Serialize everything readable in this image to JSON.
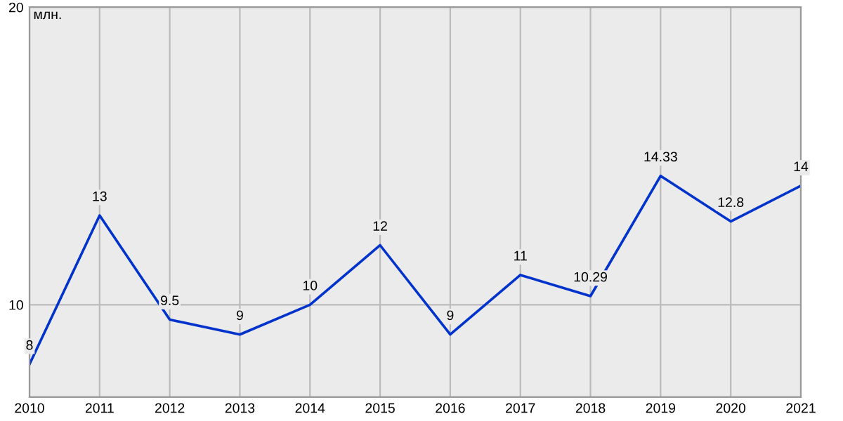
{
  "chart_data": {
    "type": "line",
    "ylabel": "млн.",
    "x": [
      2010,
      2011,
      2012,
      2013,
      2014,
      2015,
      2016,
      2017,
      2018,
      2019,
      2020,
      2021
    ],
    "values": [
      8,
      13,
      9.5,
      9,
      10,
      12,
      9,
      11,
      10.29,
      14.33,
      12.8,
      14
    ],
    "color": "#0033cc",
    "xlim": [
      2010,
      2021
    ],
    "xticks": [
      2010,
      2011,
      2012,
      2013,
      2014,
      2015,
      2016,
      2017,
      2018,
      2019,
      2020,
      2021
    ],
    "ylim": [
      6.9,
      20
    ],
    "yticks": [
      10,
      20
    ],
    "grid": true,
    "data_labels": true,
    "marker": "none",
    "line_style": "solid"
  }
}
